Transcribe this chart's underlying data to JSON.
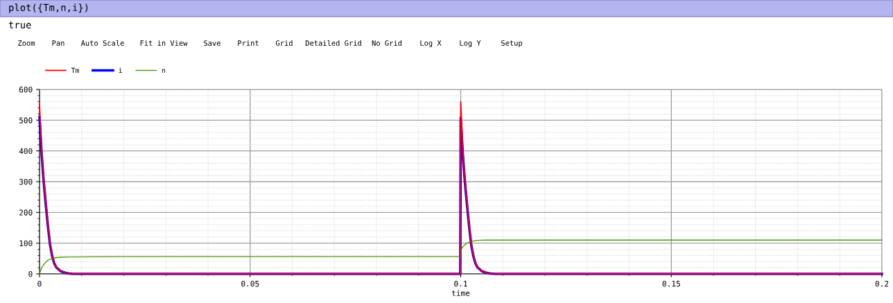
{
  "chart_data": {
    "type": "line",
    "xlabel": "time",
    "annotations": [
      "plot({Tm,n,i})",
      "true",
      "Zoom",
      "Pan",
      "Auto Scale",
      "Fit in View",
      "Save",
      "Print",
      "Grid",
      "Detailed Grid",
      "No Grid",
      "Log X",
      "Log Y",
      "Setup"
    ],
    "series": [
      {
        "name": "Tm",
        "color": "#ff0000",
        "x": [
          0,
          0.0005,
          0.001,
          0.0015,
          0.002,
          0.0025,
          0.003,
          0.0035,
          0.004,
          0.005,
          0.006,
          0.007,
          0.008,
          0.0999,
          0.1,
          0.1005,
          0.101,
          0.1015,
          0.102,
          0.1025,
          0.103,
          0.1035,
          0.104,
          0.105,
          0.106,
          0.107,
          0.108,
          0.2
        ],
        "values": [
          550,
          400,
          310,
          235,
          160,
          100,
          60,
          35,
          22,
          10,
          4,
          1,
          0,
          0,
          560,
          400,
          310,
          235,
          160,
          100,
          60,
          35,
          22,
          10,
          4,
          1,
          0,
          0
        ]
      },
      {
        "name": "i",
        "color": "#0000ff",
        "x": [
          0,
          0.0005,
          0.001,
          0.0015,
          0.002,
          0.0025,
          0.003,
          0.0035,
          0.004,
          0.005,
          0.006,
          0.007,
          0.008,
          0.0999,
          0.1,
          0.1005,
          0.101,
          0.1015,
          0.102,
          0.1025,
          0.103,
          0.1035,
          0.104,
          0.105,
          0.106,
          0.107,
          0.108,
          0.2
        ],
        "values": [
          510,
          390,
          300,
          225,
          155,
          95,
          58,
          34,
          21,
          9,
          4,
          1,
          0,
          0,
          508,
          390,
          300,
          225,
          155,
          95,
          58,
          34,
          21,
          9,
          4,
          1,
          0,
          0
        ]
      },
      {
        "name": "n",
        "color": "#4c9a00",
        "x": [
          0,
          0.0005,
          0.001,
          0.0015,
          0.002,
          0.003,
          0.004,
          0.005,
          0.007,
          0.02,
          0.1,
          0.1001,
          0.1005,
          0.101,
          0.1015,
          0.102,
          0.103,
          0.104,
          0.106,
          0.2
        ],
        "values": [
          0,
          20,
          30,
          38,
          45,
          50,
          53,
          54,
          55,
          56,
          56,
          80,
          88,
          95,
          100,
          103,
          107,
          109,
          110,
          110
        ]
      }
    ],
    "xlim": [
      0,
      0.2
    ],
    "xticks": [
      0,
      0.05,
      0.1,
      0.15,
      0.2
    ],
    "ylim": [
      0,
      600
    ],
    "yticks": [
      0,
      100,
      200,
      300,
      400,
      500,
      600
    ],
    "grid": true,
    "legend": "top left",
    "marker": "none",
    "line_style": "solid"
  }
}
